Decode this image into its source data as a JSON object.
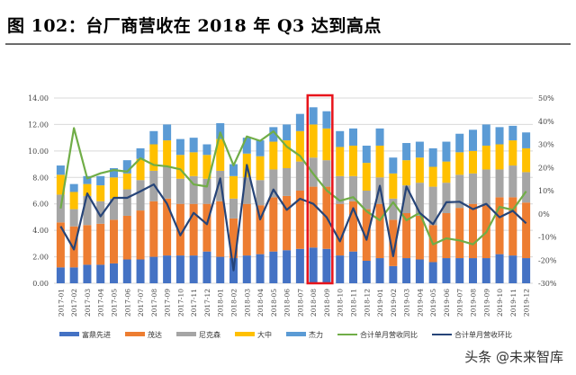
{
  "title": "图 102：台厂商营收在 2018 年 Q3 达到高点",
  "watermark": "头条 @未来智库",
  "chart_data": {
    "type": "bar",
    "stacked": true,
    "categories": [
      "2017-01",
      "2017-02",
      "2017-03",
      "2017-04",
      "2017-05",
      "2017-06",
      "2017-07",
      "2017-08",
      "2017-09",
      "2017-10",
      "2017-11",
      "2017-12",
      "2018-01",
      "2018-02",
      "2018-03",
      "2018-04",
      "2018-05",
      "2018-06",
      "2018-07",
      "2018-08",
      "2018-09",
      "2018-10",
      "2018-11",
      "2018-12",
      "2019-01",
      "2019-02",
      "2019-03",
      "2019-04",
      "2019-05",
      "2019-06",
      "2019-07",
      "2019-08",
      "2019-09",
      "2019-10",
      "2019-11",
      "2019-12"
    ],
    "series": [
      {
        "name": "富鼎先进",
        "type": "bar",
        "axis": "left",
        "color": "#4472C4",
        "values": [
          1.2,
          1.2,
          1.4,
          1.4,
          1.5,
          1.8,
          1.8,
          2.0,
          2.1,
          2.1,
          2.1,
          2.4,
          2.0,
          1.9,
          2.1,
          2.2,
          2.4,
          2.5,
          2.6,
          2.7,
          2.6,
          2.1,
          2.4,
          1.7,
          1.9,
          1.3,
          1.9,
          1.8,
          1.6,
          1.9,
          1.9,
          1.9,
          1.9,
          2.2,
          2.1,
          1.9
        ]
      },
      {
        "name": "茂达",
        "type": "bar",
        "axis": "left",
        "color": "#ED7D31",
        "values": [
          3.4,
          3.1,
          3.0,
          3.1,
          3.3,
          3.3,
          3.7,
          4.2,
          4.3,
          3.9,
          3.9,
          3.6,
          4.2,
          3.0,
          3.9,
          3.7,
          4.1,
          4.1,
          4.4,
          4.6,
          4.7,
          3.9,
          3.8,
          3.9,
          4.1,
          3.5,
          3.4,
          3.3,
          2.8,
          3.4,
          3.8,
          4.1,
          4.0,
          4.3,
          4.4,
          4.2
        ]
      },
      {
        "name": "尼克森",
        "type": "bar",
        "axis": "left",
        "color": "#A5A5A5",
        "values": [
          2.1,
          1.3,
          2.2,
          1.7,
          1.6,
          2.0,
          2.3,
          2.3,
          2.4,
          1.9,
          2.1,
          1.9,
          2.3,
          1.5,
          2.0,
          1.9,
          2.1,
          2.1,
          2.2,
          2.2,
          2.0,
          2.1,
          1.9,
          1.4,
          2.0,
          1.6,
          2.1,
          2.5,
          2.9,
          2.3,
          2.5,
          2.3,
          2.7,
          2.1,
          2.4,
          2.3
        ]
      },
      {
        "name": "大中",
        "type": "bar",
        "axis": "left",
        "color": "#FFC000",
        "values": [
          1.5,
          1.3,
          0.9,
          1.2,
          1.6,
          1.2,
          1.6,
          2.0,
          2.0,
          1.8,
          1.8,
          1.8,
          2.4,
          1.7,
          1.8,
          1.8,
          2.1,
          2.1,
          2.3,
          2.5,
          2.4,
          2.2,
          2.3,
          2.1,
          2.4,
          1.9,
          1.9,
          1.9,
          1.5,
          1.6,
          1.7,
          1.7,
          1.8,
          1.9,
          1.9,
          1.8
        ]
      },
      {
        "name": "杰力",
        "type": "bar",
        "axis": "left",
        "color": "#5B9BD5",
        "values": [
          0.7,
          0.6,
          0.6,
          0.7,
          0.7,
          1.0,
          0.8,
          1.0,
          1.2,
          1.2,
          1.1,
          0.8,
          1.2,
          0.9,
          1.2,
          1.2,
          1.1,
          1.2,
          1.3,
          1.3,
          1.3,
          1.2,
          1.3,
          1.3,
          1.3,
          1.2,
          1.3,
          1.2,
          1.4,
          1.5,
          1.4,
          1.6,
          1.6,
          1.3,
          1.1,
          1.2
        ]
      },
      {
        "name": "合计单月营收同比",
        "type": "line",
        "axis": "right",
        "unit": "%",
        "color": "#70AD47",
        "values": [
          2.3,
          37,
          15.3,
          17.5,
          18.9,
          18.2,
          24,
          21.1,
          20.5,
          19.2,
          12.7,
          11.8,
          35.1,
          20.9,
          33.4,
          31.5,
          35.6,
          29,
          25,
          17.2,
          10.1,
          5.6,
          7.2,
          1.1,
          -2.8,
          5,
          -2.8,
          0.4,
          -13.2,
          -10.6,
          -11.5,
          -13.2,
          -8,
          3,
          1.7,
          9.7
        ]
      },
      {
        "name": "合计单月营收环比",
        "type": "line",
        "axis": "right",
        "unit": "%",
        "color": "#264478",
        "values": [
          -5.4,
          -15.4,
          8.8,
          -1.1,
          6.9,
          6.9,
          9.7,
          12.7,
          4.3,
          -9.3,
          0.4,
          -4.5,
          15.3,
          -24.4,
          21.1,
          -2.4,
          10.5,
          1.7,
          6.5,
          4.3,
          -1.5,
          -11.9,
          2.4,
          -11.2,
          12.1,
          -18.3,
          11.8,
          0.4,
          -4.5,
          5,
          5.2,
          2,
          4.3,
          -1.5,
          1.3,
          -4.1
        ]
      }
    ],
    "y_left": {
      "range": [
        0,
        14
      ],
      "ticks": [
        "0.00",
        "2.00",
        "4.00",
        "6.00",
        "8.00",
        "10.00",
        "12.00",
        "14.00"
      ]
    },
    "y_right": {
      "range": [
        -30,
        50
      ],
      "ticks": [
        "-30%",
        "-20%",
        "-10%",
        "0%",
        "10%",
        "20%",
        "30%",
        "40%",
        "50%"
      ]
    },
    "grid": true,
    "legend": "bottom",
    "highlight": {
      "categories": [
        "2018-08",
        "2018-09"
      ],
      "color": "#E8141B"
    }
  }
}
